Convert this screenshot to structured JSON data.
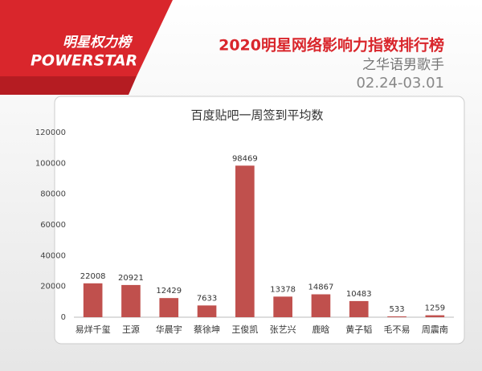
{
  "header": {
    "brand": "明星权力榜",
    "brand_sub": "POWERSTAR",
    "title": "2020明星网络影响力指数排行榜",
    "subtitle": "之华语男歌手",
    "date": "02.24-03.01"
  },
  "chart_data": {
    "type": "bar",
    "title": "百度贴吧一周签到平均数",
    "categories": [
      "易烊千玺",
      "王源",
      "华晨宇",
      "蔡徐坤",
      "王俊凯",
      "张艺兴",
      "鹿晗",
      "黄子韬",
      "毛不易",
      "周震南"
    ],
    "values": [
      22008,
      20921,
      12429,
      7633,
      98469,
      13378,
      14867,
      10483,
      533,
      1259
    ],
    "color": "#c0504d",
    "ylim": [
      0,
      120000
    ],
    "yticks": [
      0,
      20000,
      40000,
      60000,
      80000,
      100000,
      120000
    ],
    "grid": false
  }
}
